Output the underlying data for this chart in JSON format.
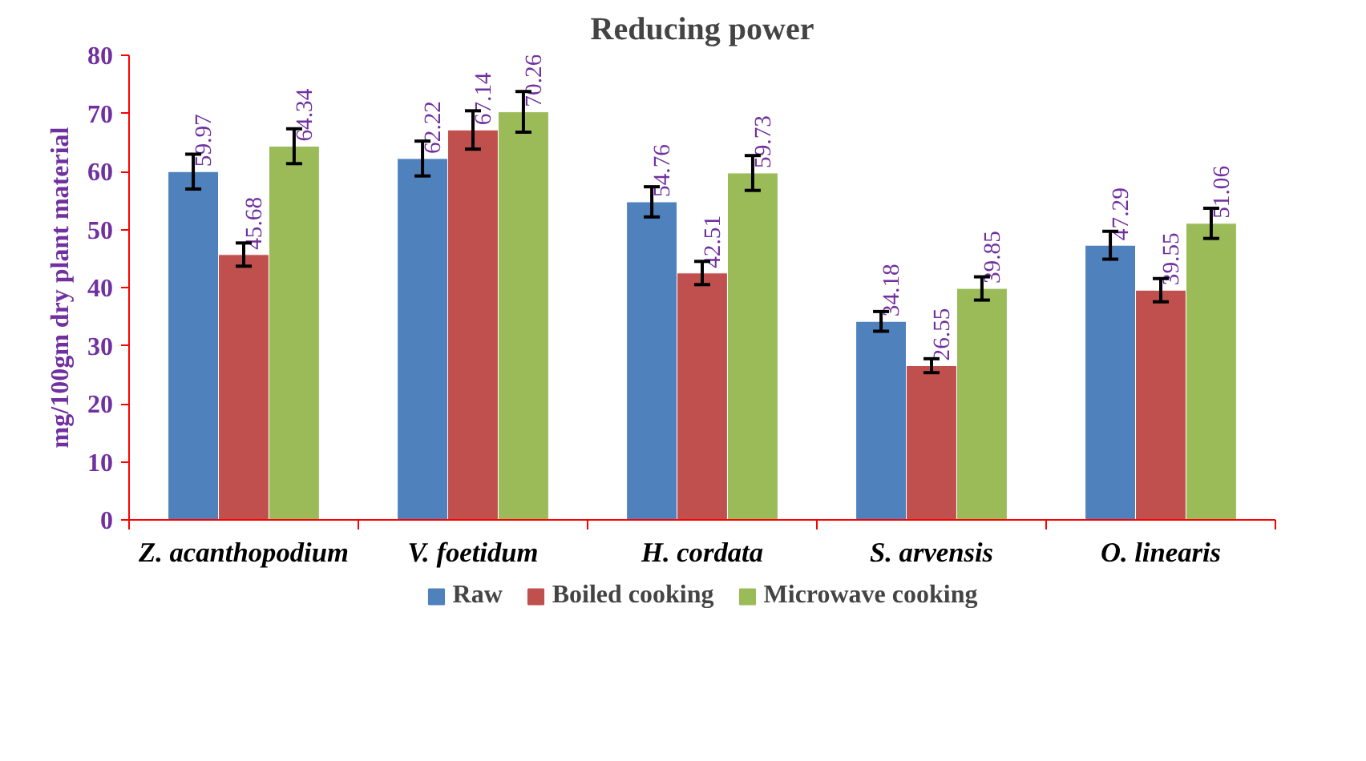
{
  "chart_data": {
    "type": "bar",
    "title": "Reducing power",
    "ylabel": "mg/100gm dry plant material",
    "categories": [
      "Z. acanthopodium",
      "V. foetidum",
      "H. cordata",
      "S. arvensis",
      "O. linearis"
    ],
    "series": [
      {
        "name": "Raw",
        "color": "#4f81bd",
        "values": [
          59.97,
          62.22,
          54.76,
          34.18,
          47.29
        ],
        "errors": [
          3,
          3,
          2.6,
          1.7,
          2.4
        ]
      },
      {
        "name": "Boiled cooking",
        "color": "#c0504d",
        "values": [
          45.68,
          67.14,
          42.51,
          26.55,
          39.55
        ],
        "errors": [
          2,
          3.3,
          2,
          1.2,
          2
        ]
      },
      {
        "name": "Microwave cooking",
        "color": "#9bbb59",
        "values": [
          64.34,
          70.26,
          59.73,
          39.85,
          51.06
        ],
        "errors": [
          3,
          3.5,
          3,
          2,
          2.6
        ]
      }
    ],
    "ylim": [
      0,
      80
    ],
    "yticks": [
      0,
      10,
      20,
      30,
      40,
      50,
      60,
      70,
      80
    ],
    "grid": false,
    "legend": "bottom",
    "data_labels": true
  }
}
